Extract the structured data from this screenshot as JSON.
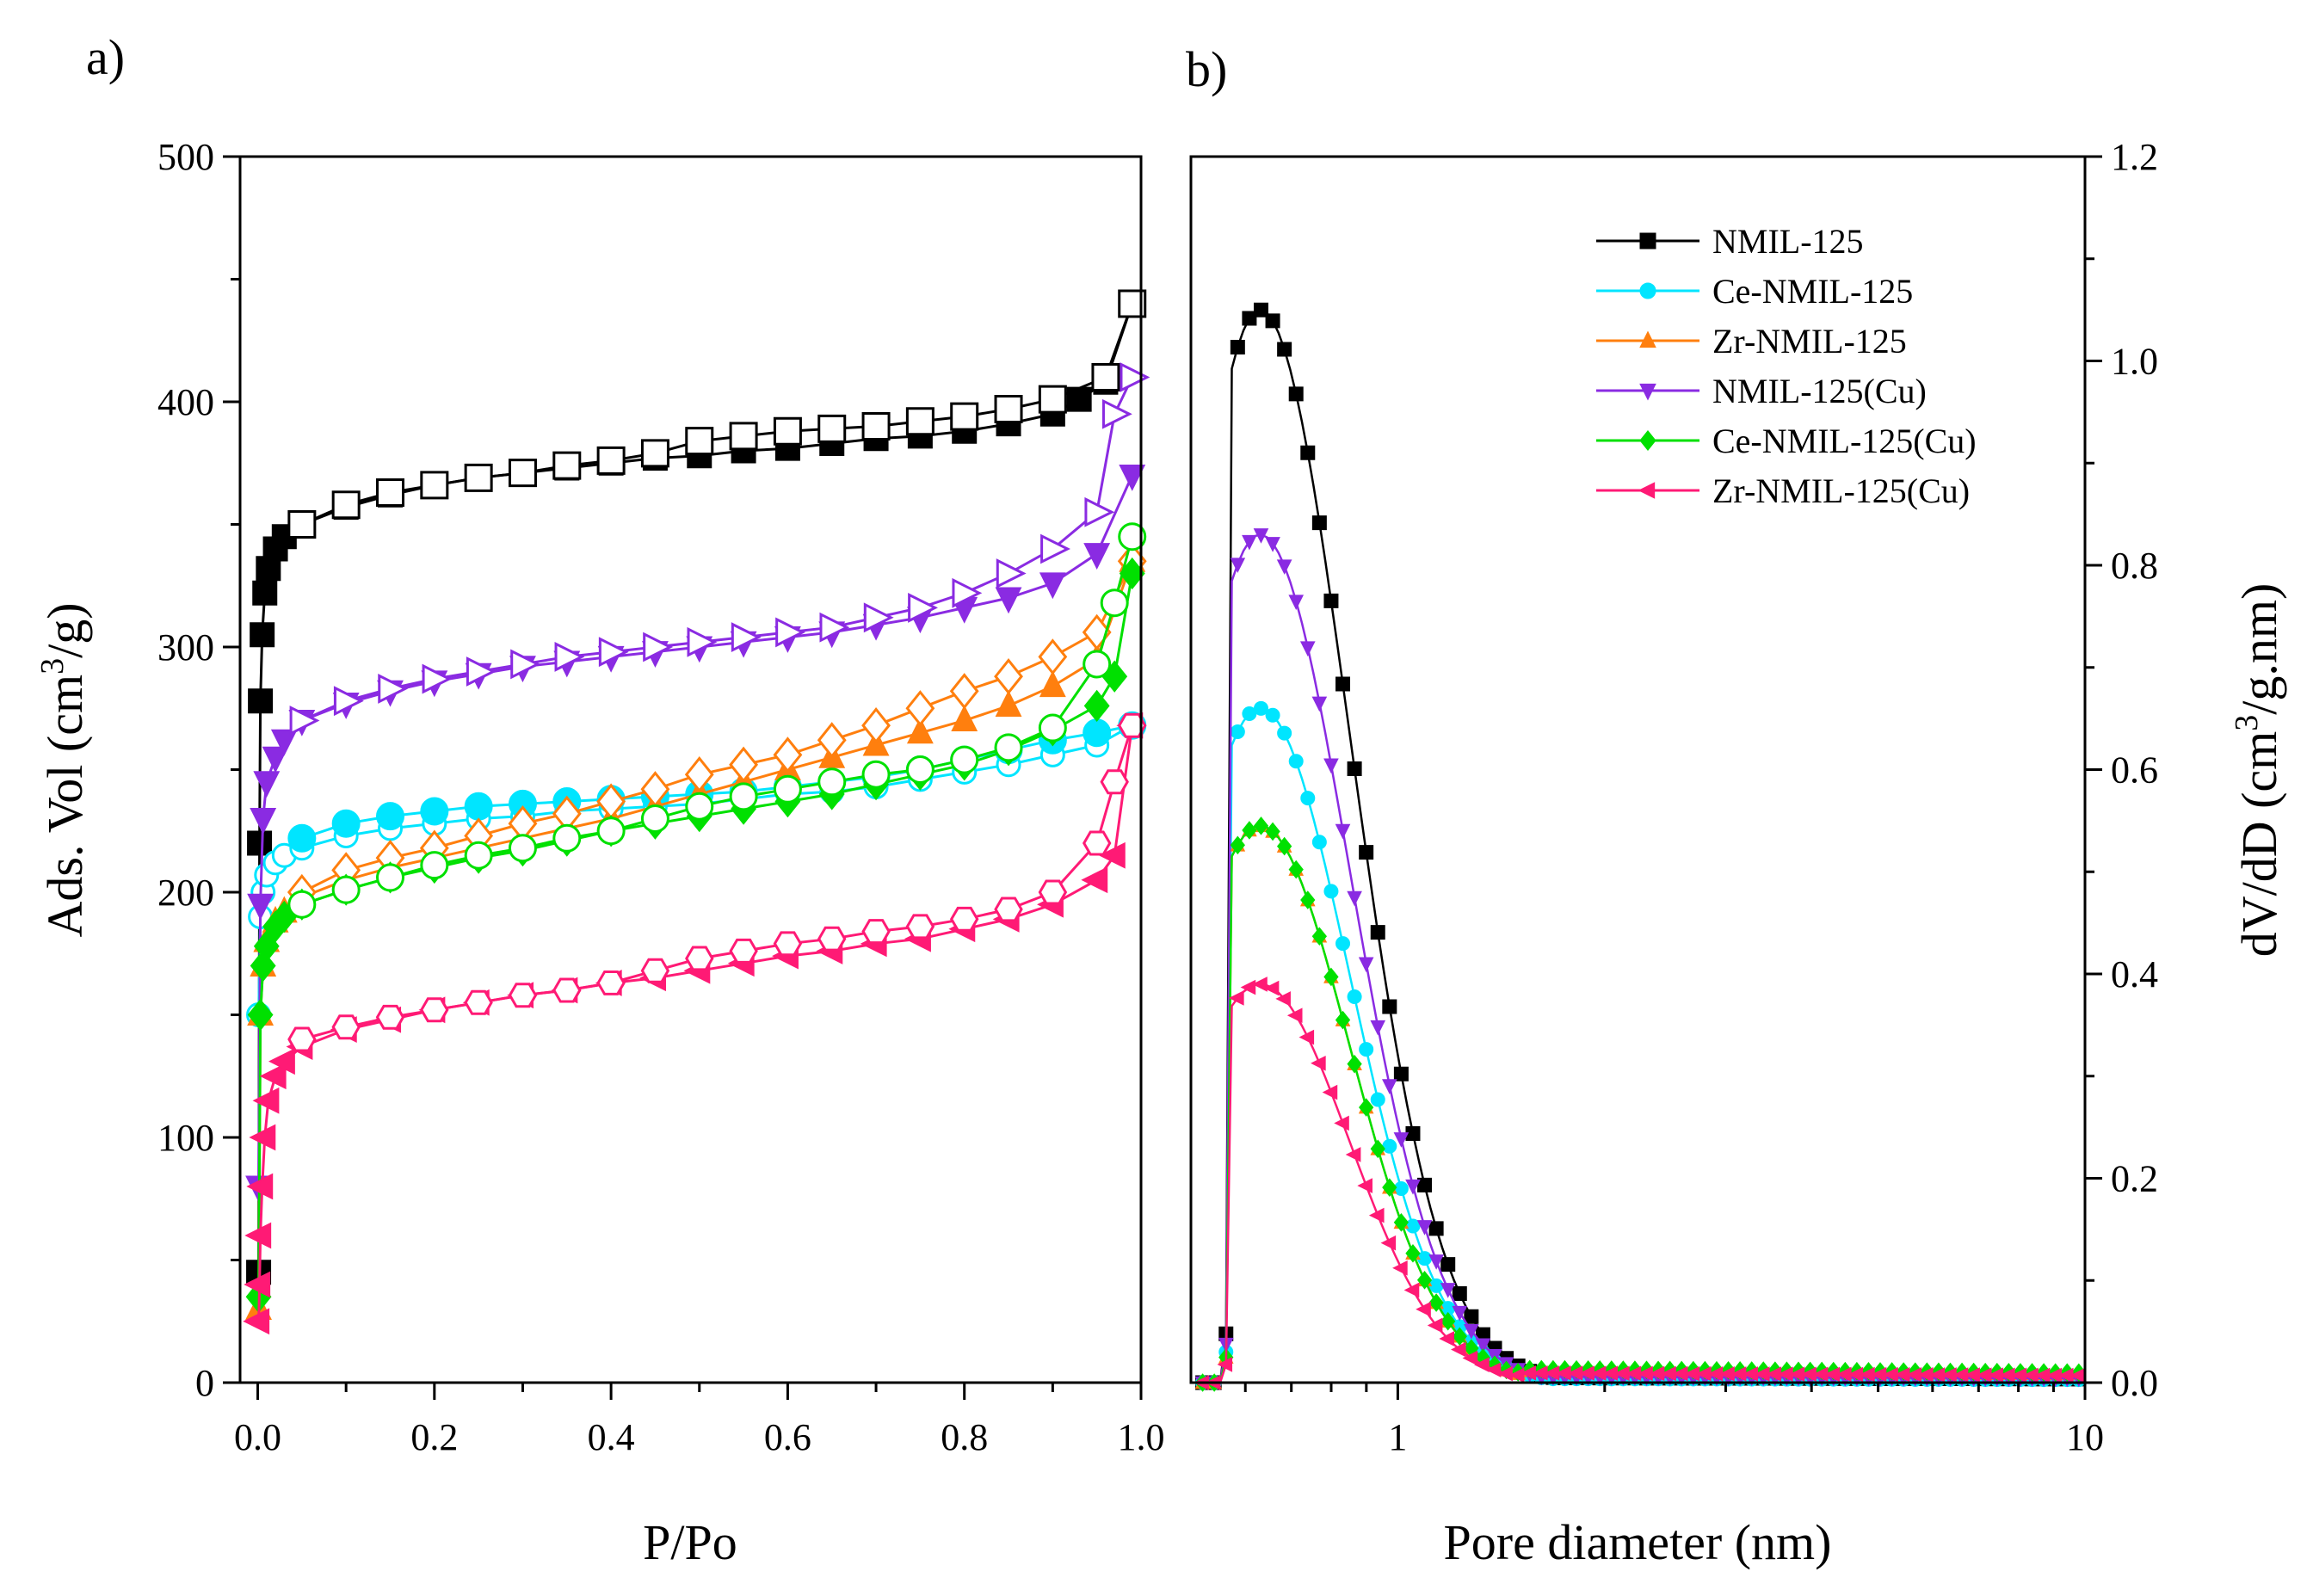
{
  "chart_data": [
    {
      "panel_label": "a)",
      "type": "scatter",
      "mode": "lines+markers",
      "title": "",
      "xlabel": "P/Po",
      "ylabel_main": "Ads. Vol (cm",
      "ylabel_sup": "3",
      "ylabel_end": "/g)",
      "xlim": [
        -0.02,
        1.0
      ],
      "ylim": [
        0,
        500
      ],
      "xticks": [
        0.0,
        0.2,
        0.4,
        0.6,
        0.8,
        1.0
      ],
      "xtick_labels": [
        "0.0",
        "0.2",
        "0.4",
        "0.6",
        "0.8",
        "1.0"
      ],
      "yticks": [
        0,
        100,
        200,
        300,
        400,
        500
      ],
      "ytick_labels": [
        "0",
        "100",
        "200",
        "300",
        "400",
        "500"
      ],
      "grid": false,
      "series": [
        {
          "name": "NMIL-125",
          "color": "#000000",
          "marker": "square",
          "adsorption": {
            "x": [
              0.001,
              0.002,
              0.003,
              0.005,
              0.008,
              0.012,
              0.02,
              0.03,
              0.05,
              0.1,
              0.15,
              0.2,
              0.25,
              0.3,
              0.35,
              0.4,
              0.45,
              0.5,
              0.55,
              0.6,
              0.65,
              0.7,
              0.75,
              0.8,
              0.85,
              0.9,
              0.93,
              0.96,
              0.99
            ],
            "y": [
              45,
              220,
              278,
              305,
              322,
              332,
              340,
              345,
              350,
              357,
              362,
              366,
              369,
              371,
              373,
              375,
              377,
              378,
              380,
              381,
              383,
              385,
              386,
              388,
              391,
              395,
              401,
              408,
              440
            ]
          },
          "desorption": {
            "x": [
              0.99,
              0.96,
              0.9,
              0.85,
              0.8,
              0.75,
              0.7,
              0.65,
              0.6,
              0.55,
              0.5,
              0.45,
              0.4,
              0.35,
              0.3,
              0.25,
              0.2,
              0.15,
              0.1,
              0.05
            ],
            "y": [
              440,
              410,
              401,
              397,
              394,
              392,
              390,
              389,
              388,
              386,
              384,
              379,
              376,
              374,
              371,
              369,
              366,
              363,
              358,
              350
            ]
          }
        },
        {
          "name": "Ce-NMIL-125",
          "color": "#00E5FF",
          "marker": "circle",
          "adsorption": {
            "x": [
              0.001,
              0.003,
              0.006,
              0.01,
              0.02,
              0.03,
              0.05,
              0.1,
              0.15,
              0.2,
              0.25,
              0.3,
              0.35,
              0.4,
              0.45,
              0.5,
              0.55,
              0.6,
              0.65,
              0.7,
              0.75,
              0.8,
              0.85,
              0.9,
              0.95,
              0.99
            ],
            "y": [
              150,
              190,
              200,
              207,
              212,
              215,
              218,
              223,
              226,
              228,
              230,
              231,
              233,
              234,
              235,
              236,
              238,
              240,
              241,
              243,
              246,
              249,
              252,
              256,
              260,
              268
            ]
          },
          "desorption": {
            "x": [
              0.99,
              0.95,
              0.9,
              0.85,
              0.8,
              0.75,
              0.7,
              0.65,
              0.6,
              0.55,
              0.5,
              0.45,
              0.4,
              0.35,
              0.3,
              0.25,
              0.2,
              0.15,
              0.1,
              0.05
            ],
            "y": [
              268,
              265,
              262,
              258,
              254,
              250,
              247,
              245,
              243,
              241,
              240,
              239,
              238,
              237,
              236,
              235,
              233,
              231,
              228,
              222
            ]
          }
        },
        {
          "name": "Zr-NMIL-125",
          "color": "#FF7F0E",
          "marker": "triangle-up",
          "adsorption": {
            "x": [
              0.001,
              0.003,
              0.006,
              0.01,
              0.02,
              0.03,
              0.05,
              0.1,
              0.15,
              0.2,
              0.25,
              0.3,
              0.35,
              0.4,
              0.45,
              0.5,
              0.55,
              0.6,
              0.65,
              0.7,
              0.75,
              0.8,
              0.85,
              0.9,
              0.95,
              0.99
            ],
            "y": [
              30,
              150,
              170,
              180,
              188,
              192,
              198,
              205,
              210,
              214,
              218,
              222,
              226,
              230,
              235,
              240,
              245,
              250,
              255,
              260,
              265,
              270,
              276,
              284,
              295,
              335
            ]
          },
          "desorption": {
            "x": [
              0.99,
              0.95,
              0.9,
              0.85,
              0.8,
              0.75,
              0.7,
              0.65,
              0.6,
              0.55,
              0.5,
              0.45,
              0.4,
              0.35,
              0.3,
              0.25,
              0.2,
              0.15,
              0.1,
              0.05
            ],
            "y": [
              335,
              306,
              296,
              288,
              282,
              275,
              268,
              262,
              256,
              252,
              248,
              242,
              237,
              232,
              228,
              223,
              218,
              214,
              209,
              200
            ]
          }
        },
        {
          "name": "NMIL-125(Cu)",
          "color": "#8A2BE2",
          "marker": "triangle-down",
          "adsorption": {
            "x": [
              0.001,
              0.003,
              0.006,
              0.01,
              0.02,
              0.03,
              0.05,
              0.1,
              0.15,
              0.2,
              0.25,
              0.3,
              0.35,
              0.4,
              0.45,
              0.5,
              0.55,
              0.6,
              0.65,
              0.7,
              0.75,
              0.8,
              0.85,
              0.9,
              0.95,
              0.99
            ],
            "y": [
              80,
              195,
              230,
              245,
              255,
              262,
              270,
              277,
              282,
              286,
              289,
              292,
              294,
              296,
              298,
              300,
              302,
              304,
              306,
              309,
              312,
              316,
              320,
              326,
              338,
              370
            ]
          },
          "desorption": {
            "x": [
              0.99,
              0.97,
              0.95,
              0.9,
              0.85,
              0.8,
              0.75,
              0.7,
              0.65,
              0.6,
              0.55,
              0.5,
              0.45,
              0.4,
              0.35,
              0.3,
              0.25,
              0.2,
              0.15,
              0.1,
              0.05
            ],
            "y": [
              410,
              395,
              355,
              340,
              330,
              322,
              316,
              312,
              308,
              306,
              304,
              302,
              300,
              298,
              296,
              293,
              290,
              287,
              283,
              278,
              270
            ]
          }
        },
        {
          "name": "Ce-NMIL-125(Cu)",
          "color": "#00E000",
          "marker": "diamond",
          "adsorption": {
            "x": [
              0.001,
              0.003,
              0.006,
              0.01,
              0.02,
              0.03,
              0.05,
              0.1,
              0.15,
              0.2,
              0.25,
              0.3,
              0.35,
              0.4,
              0.45,
              0.5,
              0.55,
              0.6,
              0.65,
              0.7,
              0.75,
              0.8,
              0.85,
              0.9,
              0.95,
              0.97,
              0.99
            ],
            "y": [
              35,
              150,
              170,
              178,
              186,
              190,
              195,
              201,
              206,
              210,
              214,
              217,
              221,
              225,
              228,
              231,
              234,
              237,
              240,
              244,
              248,
              252,
              258,
              266,
              276,
              288,
              330
            ]
          },
          "desorption": {
            "x": [
              0.99,
              0.97,
              0.95,
              0.9,
              0.85,
              0.8,
              0.75,
              0.7,
              0.65,
              0.6,
              0.55,
              0.5,
              0.45,
              0.4,
              0.35,
              0.3,
              0.25,
              0.2,
              0.15,
              0.1,
              0.05
            ],
            "y": [
              345,
              318,
              293,
              267,
              259,
              254,
              250,
              248,
              245,
              242,
              239,
              235,
              230,
              225,
              222,
              218,
              215,
              211,
              206,
              201,
              195
            ]
          }
        },
        {
          "name": "Zr-NMIL-125(Cu)",
          "color": "#FF1A75",
          "marker": "triangle-left",
          "adsorption": {
            "x": [
              0.001,
              0.002,
              0.003,
              0.005,
              0.008,
              0.012,
              0.02,
              0.03,
              0.05,
              0.1,
              0.15,
              0.2,
              0.25,
              0.3,
              0.35,
              0.4,
              0.45,
              0.5,
              0.55,
              0.6,
              0.65,
              0.7,
              0.75,
              0.8,
              0.85,
              0.9,
              0.95,
              0.97,
              0.99
            ],
            "y": [
              25,
              40,
              60,
              80,
              100,
              115,
              125,
              131,
              137,
              144,
              148,
              152,
              155,
              158,
              160,
              163,
              165,
              168,
              171,
              174,
              176,
              179,
              181,
              185,
              189,
              195,
              205,
              215,
              268
            ]
          },
          "desorption": {
            "x": [
              0.99,
              0.97,
              0.95,
              0.9,
              0.85,
              0.8,
              0.75,
              0.7,
              0.65,
              0.6,
              0.55,
              0.5,
              0.45,
              0.4,
              0.35,
              0.3,
              0.25,
              0.2,
              0.15,
              0.1,
              0.05
            ],
            "y": [
              268,
              245,
              220,
              200,
              193,
              189,
              186,
              184,
              181,
              179,
              176,
              173,
              168,
              163,
              160,
              158,
              155,
              152,
              149,
              145,
              140
            ]
          }
        }
      ]
    },
    {
      "panel_label": "b)",
      "type": "scatter",
      "mode": "lines+markers",
      "title": "",
      "xlabel": "Pore diameter (nm)",
      "ylabel_main": "dV/dD (cm",
      "ylabel_sup": "3",
      "ylabel_end": "/g.nm)",
      "xscale": "log",
      "xlim": [
        0.5,
        10
      ],
      "ylim": [
        0,
        1.2
      ],
      "xticks": [
        1,
        10
      ],
      "xtick_labels": [
        "1",
        "10"
      ],
      "yticks": [
        0.0,
        0.2,
        0.4,
        0.6,
        0.8,
        1.0,
        1.2
      ],
      "ytick_labels": [
        "0.0",
        "0.2",
        "0.4",
        "0.6",
        "0.8",
        "1.0",
        "1.2"
      ],
      "grid": false,
      "legend_position": "top-right",
      "peak_diameter_nm": 0.63,
      "series": [
        {
          "name": "NMIL-125",
          "color": "#000000",
          "marker": "square",
          "peak": 1.05,
          "tail": 0.005
        },
        {
          "name": "Ce-NMIL-125",
          "color": "#00E5FF",
          "marker": "circle",
          "peak": 0.66,
          "tail": 0.004
        },
        {
          "name": "Zr-NMIL-125",
          "color": "#FF7F0E",
          "marker": "triangle-up",
          "peak": 0.545,
          "tail": 0.012
        },
        {
          "name": "NMIL-125(Cu)",
          "color": "#8A2BE2",
          "marker": "triangle-down",
          "peak": 0.83,
          "tail": 0.006
        },
        {
          "name": "Ce-NMIL-125(Cu)",
          "color": "#00E000",
          "marker": "diamond",
          "peak": 0.545,
          "tail": 0.014
        },
        {
          "name": "Zr-NMIL-125(Cu)",
          "color": "#FF1A75",
          "marker": "triangle-left",
          "peak": 0.39,
          "tail": 0.01
        }
      ]
    }
  ]
}
